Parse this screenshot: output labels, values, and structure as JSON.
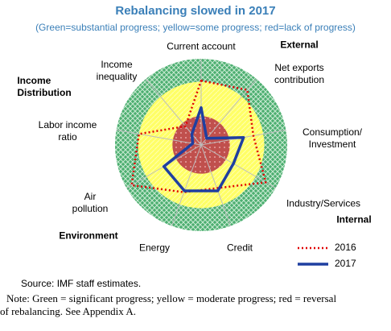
{
  "chart_data": {
    "type": "radar",
    "title": "Rebalancing slowed in 2017",
    "subtitle": "(Green=substantial progress; yellow=some progress; red=lack of progress)",
    "categories": [
      "Current account",
      "Net exports\ncontribution",
      "Consumption/\nInvestment",
      "Industry/Services",
      "Credit",
      "Energy",
      "Air\npollution",
      "Labor income\nratio",
      "Income\ninequality"
    ],
    "group_labels": [
      "External",
      "Internal",
      "Income\nDistribution",
      "Environment"
    ],
    "rlim": [
      0,
      3
    ],
    "zones": [
      {
        "color": "#c0504d",
        "to": 1
      },
      {
        "color": "#ffff66",
        "to": 2.2
      },
      {
        "color": "#4cae70",
        "to": 3
      }
    ],
    "series": [
      {
        "name": "2016",
        "color": "#e00000",
        "style": "dotted",
        "values": [
          2.24,
          2.5,
          1.85,
          2.6,
          1.6,
          1.75,
          2.8,
          2.2,
          0.85
        ]
      },
      {
        "name": "2017",
        "color": "#1f3fa0",
        "style": "solid",
        "values": [
          1.3,
          0.3,
          1.5,
          1.3,
          1.7,
          1.7,
          1.5,
          0.3,
          0.5
        ]
      }
    ],
    "source": "Source: IMF staff estimates.",
    "note": "Note: Green = significant progress; yellow = moderate progress; red = reversal of rebalancing. See Appendix A."
  }
}
